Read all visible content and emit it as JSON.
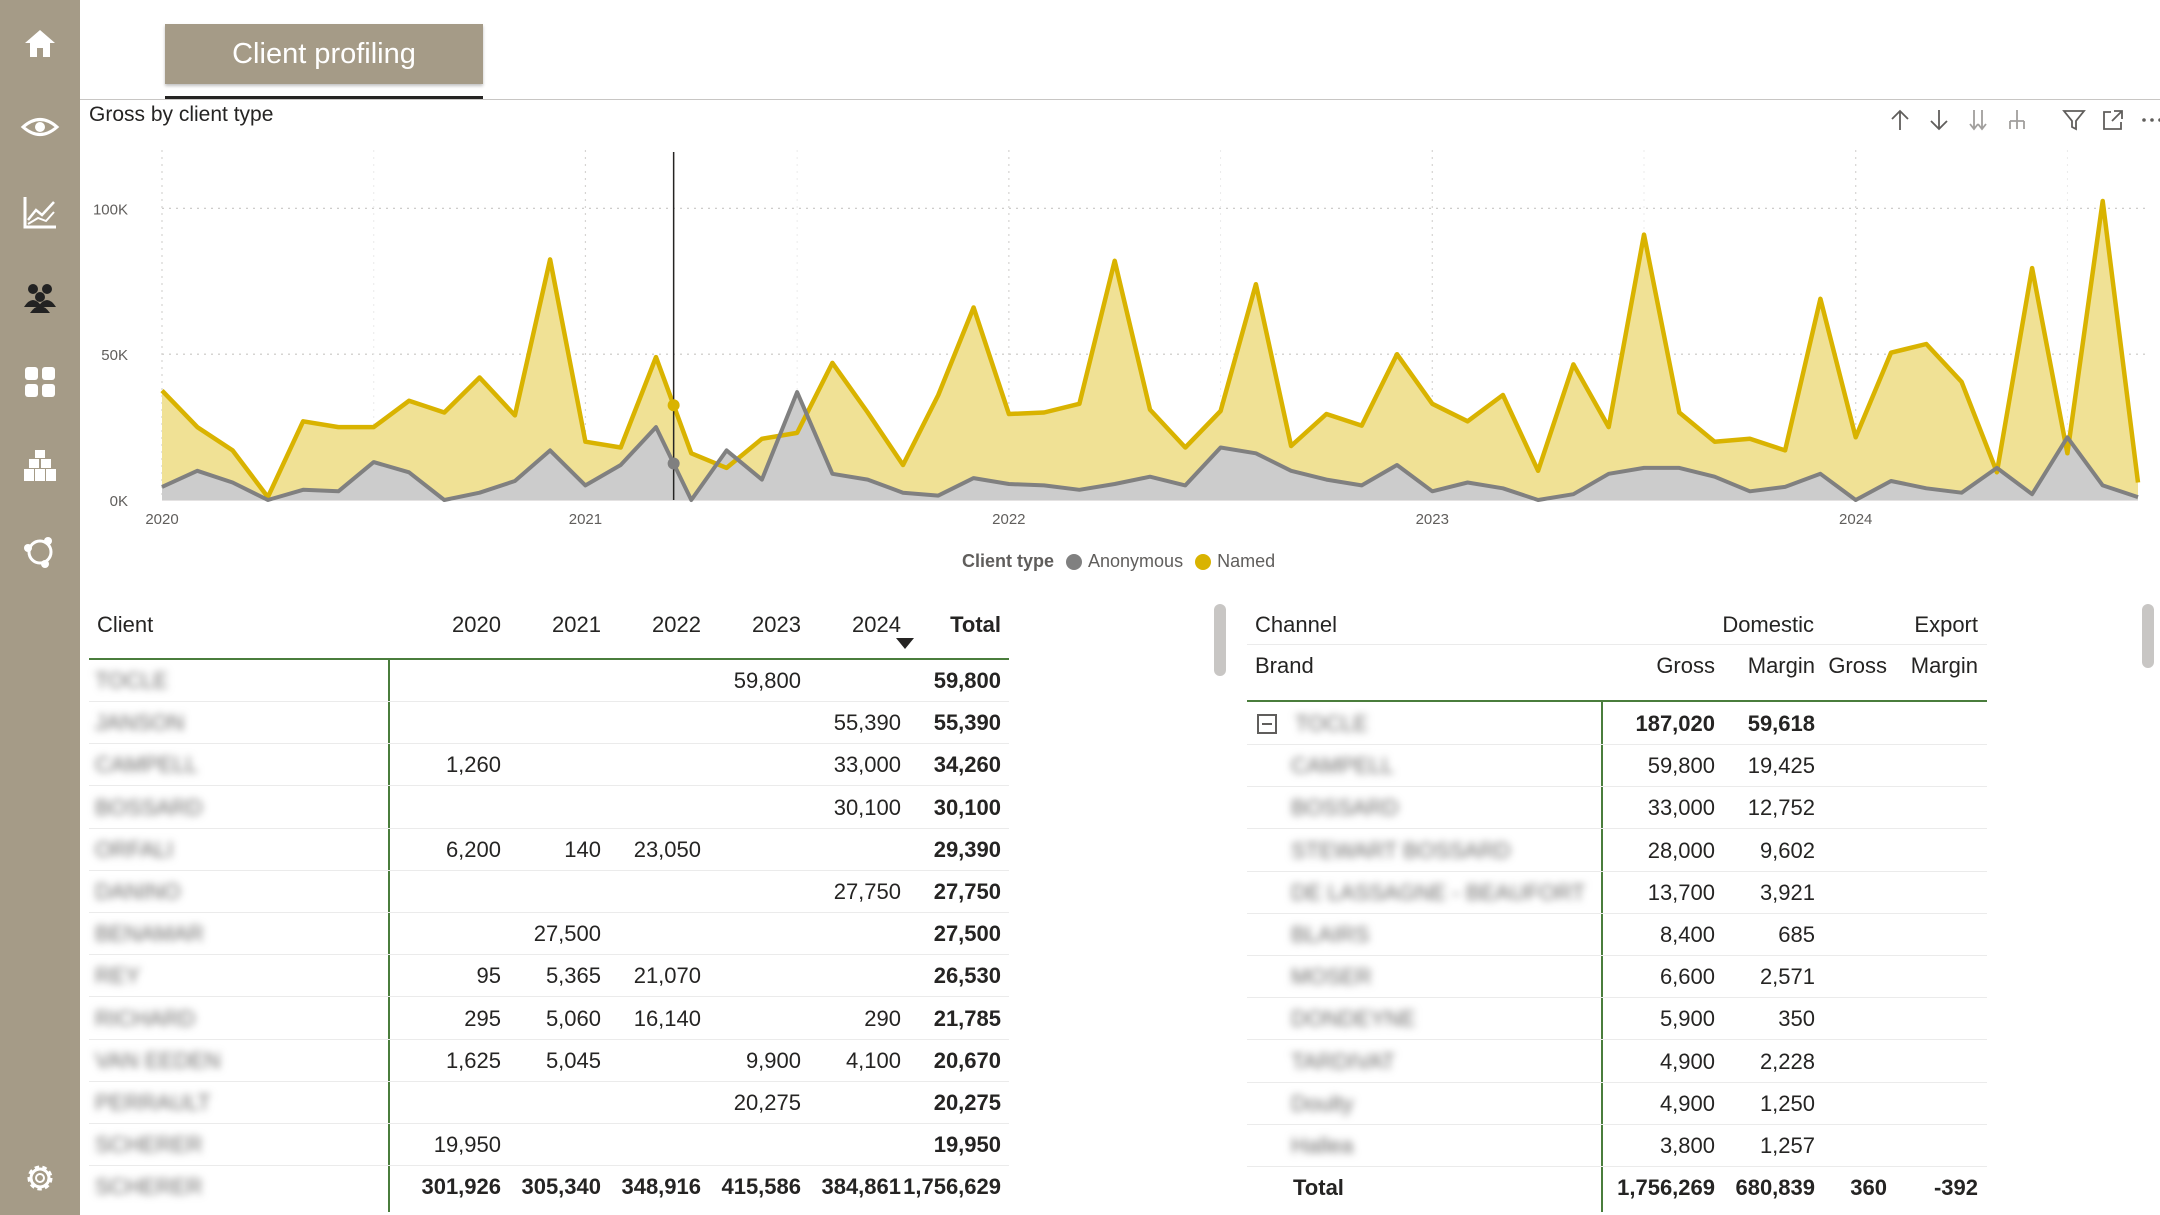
{
  "page": {
    "tab_label": "Client profiling"
  },
  "sidebar": {
    "items": [
      {
        "icon": "home-icon"
      },
      {
        "icon": "eye-icon"
      },
      {
        "icon": "line-chart-icon"
      },
      {
        "icon": "people-icon"
      },
      {
        "icon": "grid-icon"
      },
      {
        "icon": "boxes-icon"
      },
      {
        "icon": "network-icon"
      }
    ],
    "bottom_icon": "gear-icon"
  },
  "chart": {
    "title": "Gross by client type",
    "toolbar": [
      "arrow-up-icon",
      "arrow-down-icon",
      "double-arrow-down-icon",
      "expand-hierarchy-icon",
      "filter-icon",
      "focus-mode-icon",
      "more-options-icon"
    ]
  },
  "chart_data": {
    "type": "area",
    "title": "Gross by client type",
    "xlabel": "",
    "ylabel": "",
    "ylim": [
      0,
      120000
    ],
    "yticks": [
      0,
      50000,
      100000
    ],
    "ytick_labels": [
      "0K",
      "50K",
      "100K"
    ],
    "xtick_labels": [
      "2020",
      "2021",
      "2022",
      "2023",
      "2024"
    ],
    "x_start": "2020-01",
    "x_end": "2024-08",
    "grid": true,
    "stacked": true,
    "legend": {
      "title": "Client type",
      "placement": "bottom-center"
    },
    "hover_month_index": 14,
    "series": [
      {
        "name": "Anonymous",
        "color": "#808080",
        "values": [
          4500,
          10000,
          6000,
          0,
          3500,
          3000,
          13000,
          9500,
          0,
          2500,
          6500,
          17000,
          5000,
          12000,
          25000,
          0,
          17000,
          7000,
          37000,
          9000,
          7000,
          2500,
          1500,
          7500,
          5500,
          5000,
          3500,
          5500,
          8000,
          5000,
          18000,
          16000,
          10000,
          7000,
          5000,
          12000,
          3000,
          6000,
          4000,
          0,
          2000,
          9000,
          11000,
          11000,
          8000,
          3000,
          4500,
          9000,
          0,
          6500,
          4000,
          2500,
          11000,
          2000,
          21500,
          5000,
          1000
        ]
      },
      {
        "name": "Named",
        "color": "#d9b300",
        "values": [
          37500,
          25000,
          17000,
          1000,
          27000,
          25000,
          25000,
          34000,
          30000,
          42000,
          29000,
          82500,
          20000,
          18000,
          49000,
          16000,
          11000,
          21000,
          23000,
          47000,
          30000,
          12000,
          36000,
          66000,
          29500,
          30000,
          33000,
          82000,
          31000,
          18000,
          30500,
          74000,
          18500,
          29500,
          25500,
          50000,
          33000,
          27000,
          36000,
          10000,
          46500,
          25000,
          91000,
          30000,
          20000,
          21000,
          17000,
          69000,
          21500,
          50500,
          53500,
          40500,
          9500,
          79500,
          16000,
          102500,
          6000
        ]
      }
    ]
  },
  "client_table": {
    "headers": [
      "Client",
      "2020",
      "2021",
      "2022",
      "2023",
      "2024",
      "Total"
    ],
    "rows": [
      {
        "client": "TOCLE",
        "y2020": "",
        "y2021": "",
        "y2022": "",
        "y2023": "59,800",
        "y2024": "",
        "total": "59,800"
      },
      {
        "client": "JANSON",
        "y2020": "",
        "y2021": "",
        "y2022": "",
        "y2023": "",
        "y2024": "55,390",
        "total": "55,390"
      },
      {
        "client": "CAMPELL",
        "y2020": "1,260",
        "y2021": "",
        "y2022": "",
        "y2023": "",
        "y2024": "33,000",
        "total": "34,260"
      },
      {
        "client": "BOSSARD",
        "y2020": "",
        "y2021": "",
        "y2022": "",
        "y2023": "",
        "y2024": "30,100",
        "total": "30,100"
      },
      {
        "client": "ORFALI",
        "y2020": "6,200",
        "y2021": "140",
        "y2022": "23,050",
        "y2023": "",
        "y2024": "",
        "total": "29,390"
      },
      {
        "client": "DANINO",
        "y2020": "",
        "y2021": "",
        "y2022": "",
        "y2023": "",
        "y2024": "27,750",
        "total": "27,750"
      },
      {
        "client": "BENAMAR",
        "y2020": "",
        "y2021": "27,500",
        "y2022": "",
        "y2023": "",
        "y2024": "",
        "total": "27,500"
      },
      {
        "client": "REY",
        "y2020": "95",
        "y2021": "5,365",
        "y2022": "21,070",
        "y2023": "",
        "y2024": "",
        "total": "26,530"
      },
      {
        "client": "RICHARD",
        "y2020": "295",
        "y2021": "5,060",
        "y2022": "16,140",
        "y2023": "",
        "y2024": "290",
        "total": "21,785"
      },
      {
        "client": "VAN EEDEN",
        "y2020": "1,625",
        "y2021": "5,045",
        "y2022": "",
        "y2023": "9,900",
        "y2024": "4,100",
        "total": "20,670"
      },
      {
        "client": "PERRAULT",
        "y2020": "",
        "y2021": "",
        "y2022": "",
        "y2023": "20,275",
        "y2024": "",
        "total": "20,275"
      },
      {
        "client": "SCHERER",
        "y2020": "19,950",
        "y2021": "",
        "y2022": "",
        "y2023": "",
        "y2024": "",
        "total": "19,950"
      }
    ],
    "total_row": {
      "client": "SCHERER",
      "y2020": "301,926",
      "y2021": "305,340",
      "y2022": "348,916",
      "y2023": "415,586",
      "y2024": "384,861",
      "total": "1,756,629"
    }
  },
  "channel_table": {
    "header_row1": {
      "channel": "Channel",
      "domestic": "Domestic",
      "export": "Export"
    },
    "header_row2": {
      "brand": "Brand",
      "gross": "Gross",
      "margin": "Margin",
      "export_gross": "Gross",
      "export_margin": "Margin"
    },
    "group": {
      "name": "TOCLE",
      "gross": "187,020",
      "margin": "59,618"
    },
    "rows": [
      {
        "brand": "CAMPELL",
        "gross": "59,800",
        "margin": "19,425"
      },
      {
        "brand": "BOSSARD",
        "gross": "33,000",
        "margin": "12,752"
      },
      {
        "brand": "STEWART BOSSARD",
        "gross": "28,000",
        "margin": "9,602"
      },
      {
        "brand": "DE LASSAGNE - BEAUFORT",
        "gross": "13,700",
        "margin": "3,921"
      },
      {
        "brand": "BLAIRS",
        "gross": "8,400",
        "margin": "685"
      },
      {
        "brand": "MOSER",
        "gross": "6,600",
        "margin": "2,571"
      },
      {
        "brand": "DONDEYNE",
        "gross": "5,900",
        "margin": "350"
      },
      {
        "brand": "TARDIVAT",
        "gross": "4,900",
        "margin": "2,228"
      },
      {
        "brand": "Doulty",
        "gross": "4,900",
        "margin": "1,250"
      },
      {
        "brand": "Hallea",
        "gross": "3,800",
        "margin": "1,257"
      }
    ],
    "total_row": {
      "label": "Total",
      "gross": "1,756,269",
      "margin": "680,839",
      "export_gross": "360",
      "export_margin": "-392"
    }
  }
}
